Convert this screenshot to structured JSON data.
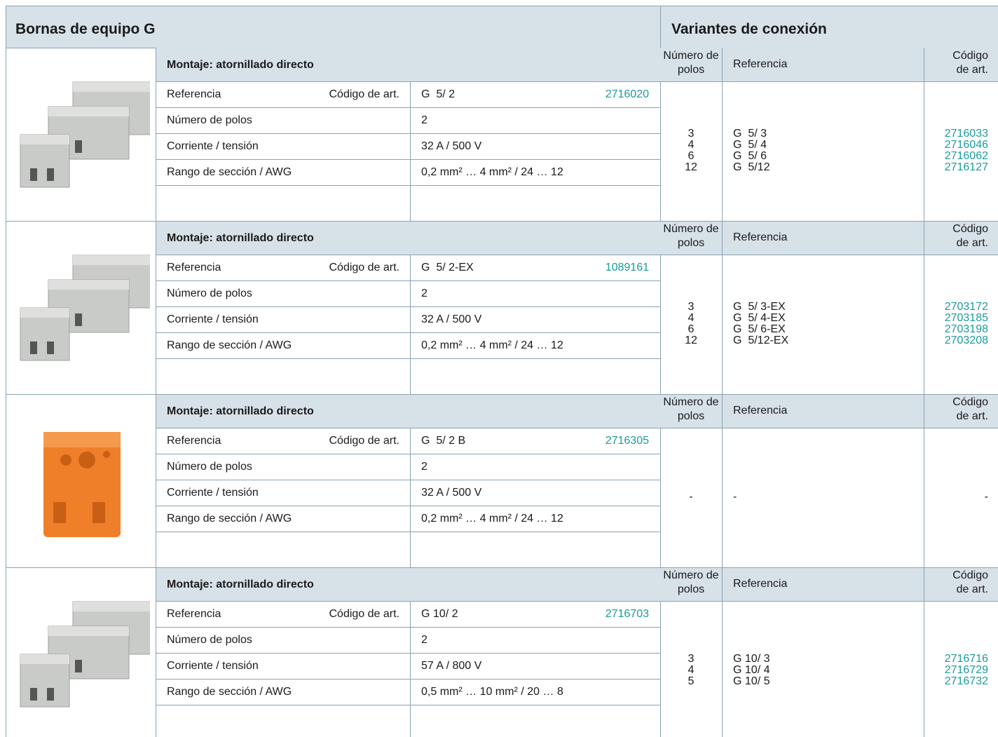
{
  "header": {
    "title": "Bornas de equipo G",
    "variants_title": "Variantes de conexión"
  },
  "sections": [
    {
      "mounting": "Montaje: atornillado directo",
      "variant_headers": [
        "Número de polos",
        "Referencia",
        "Código de art."
      ],
      "labels": {
        "reference": "Referencia",
        "code": "Código de art.",
        "poles": "Número de polos",
        "current": "Corriente / tensión",
        "range": "Rango de sección / AWG"
      },
      "product": {
        "reference": "G  5/ 2",
        "code": "2716020",
        "poles": "2",
        "current": "32 A / 500 V",
        "range": "0,2 mm² … 4 mm² / 24 … 12"
      },
      "variants": [
        {
          "poles": "3",
          "reference": "G  5/ 3",
          "code": "2716033"
        },
        {
          "poles": "4",
          "reference": "G  5/ 4",
          "code": "2716046"
        },
        {
          "poles": "6",
          "reference": "G  5/ 6",
          "code": "2716062"
        },
        {
          "poles": "12",
          "reference": "G  5/12",
          "code": "2716127"
        }
      ]
    },
    {
      "mounting": "Montaje: atornillado directo",
      "variant_headers": [
        "Número de polos",
        "Referencia",
        "Código de art."
      ],
      "labels": {
        "reference": "Referencia",
        "code": "Código de art.",
        "poles": "Número de polos",
        "current": "Corriente / tensión",
        "range": "Rango de sección / AWG"
      },
      "product": {
        "reference": "G  5/ 2-EX",
        "code": "1089161",
        "poles": "2",
        "current": "32 A / 500 V",
        "range": "0,2 mm² … 4 mm² / 24 … 12"
      },
      "variants": [
        {
          "poles": "3",
          "reference": "G  5/ 3-EX",
          "code": "2703172"
        },
        {
          "poles": "4",
          "reference": "G  5/ 4-EX",
          "code": "2703185"
        },
        {
          "poles": "6",
          "reference": "G  5/ 6-EX",
          "code": "2703198"
        },
        {
          "poles": "12",
          "reference": "G  5/12-EX",
          "code": "2703208"
        }
      ]
    },
    {
      "mounting": "Montaje: atornillado directo",
      "variant_headers": [
        "Número de polos",
        "Referencia",
        "Código de art."
      ],
      "labels": {
        "reference": "Referencia",
        "code": "Código de art.",
        "poles": "Número de polos",
        "current": "Corriente / tensión",
        "range": "Rango de sección / AWG"
      },
      "product": {
        "reference": "G  5/ 2 B",
        "code": "2716305",
        "poles": "2",
        "current": "32 A / 500 V",
        "range": "0,2 mm² … 4 mm² / 24 … 12"
      },
      "variants": [
        {
          "poles": "-",
          "reference": "-",
          "code": "-"
        }
      ]
    },
    {
      "mounting": "Montaje: atornillado directo",
      "variant_headers": [
        "Número de polos",
        "Referencia",
        "Código de art."
      ],
      "labels": {
        "reference": "Referencia",
        "code": "Código de art.",
        "poles": "Número de polos",
        "current": "Corriente / tensión",
        "range": "Rango de sección / AWG"
      },
      "product": {
        "reference": "G 10/ 2",
        "code": "2716703",
        "poles": "2",
        "current": "57 A / 800 V",
        "range": "0,5 mm² … 10 mm² / 20 … 8"
      },
      "variants": [
        {
          "poles": "3",
          "reference": "G 10/ 3",
          "code": "2716716"
        },
        {
          "poles": "4",
          "reference": "G 10/ 4",
          "code": "2716729"
        },
        {
          "poles": "5",
          "reference": "G 10/ 5",
          "code": "2716732"
        }
      ]
    }
  ]
}
